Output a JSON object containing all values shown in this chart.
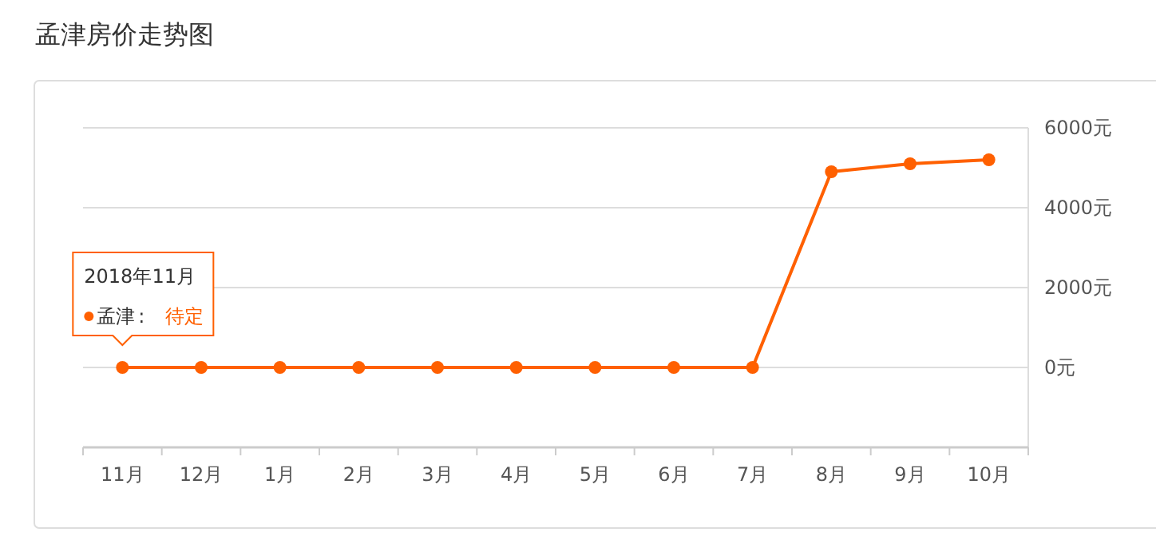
{
  "chart_data": {
    "type": "line",
    "title": "孟津房价走势图",
    "categories": [
      "11月",
      "12月",
      "1月",
      "2月",
      "3月",
      "4月",
      "5月",
      "6月",
      "7月",
      "8月",
      "9月",
      "10月"
    ],
    "series": [
      {
        "name": "孟津",
        "color": "#ff6000",
        "values": [
          0,
          0,
          0,
          0,
          0,
          0,
          0,
          0,
          0,
          4900,
          5100,
          5200
        ]
      }
    ],
    "ylim": [
      -2000,
      6000
    ],
    "yticks": [
      {
        "value": 0,
        "label": "0元"
      },
      {
        "value": 2000,
        "label": "2000元"
      },
      {
        "value": 4000,
        "label": "4000元"
      },
      {
        "value": 6000,
        "label": "6000元"
      }
    ],
    "grid": "y",
    "marker": "circle",
    "line_style": "solid",
    "annotations": [
      "2018年11月",
      ":",
      "待定"
    ]
  }
}
